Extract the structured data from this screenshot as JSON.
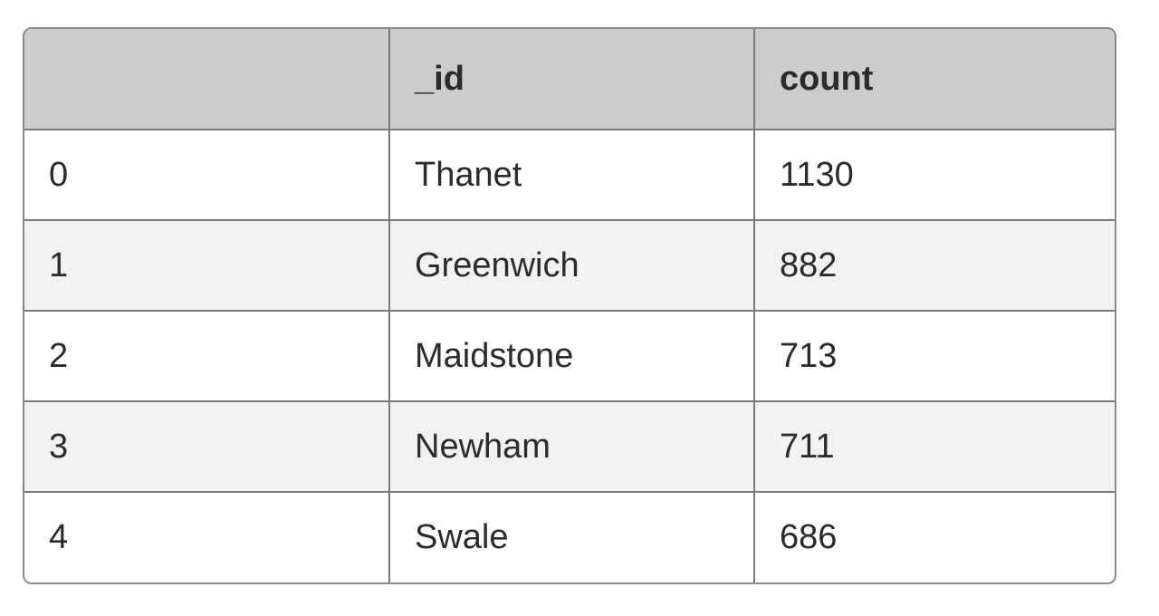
{
  "table": {
    "headers": [
      "",
      "_id",
      "count"
    ],
    "rows": [
      [
        "0",
        "Thanet",
        "1130"
      ],
      [
        "1",
        "Greenwich",
        "882"
      ],
      [
        "2",
        "Maidstone",
        "713"
      ],
      [
        "3",
        "Newham",
        "711"
      ],
      [
        "4",
        "Swale",
        "686"
      ]
    ]
  },
  "colors": {
    "header_bg": "#cccccc",
    "row_alt_bg": "#f2f2f2",
    "border": "#7a7a7a"
  }
}
